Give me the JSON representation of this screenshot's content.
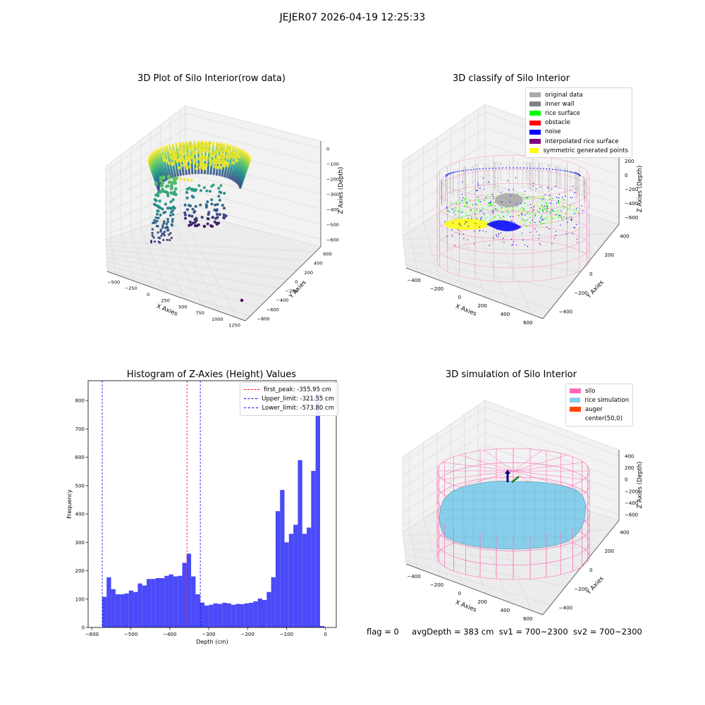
{
  "suptitle": "JEJER07 2026-04-19 12:25:33",
  "colors": {
    "gray": "#aaaaaa",
    "inner_wall": "#808080",
    "rice_surface": "#00ff00",
    "obstacle": "#ff0000",
    "noise": "#0000ff",
    "interp": "#800080",
    "sym": "#ffff00",
    "silo": "#ff69b4",
    "rice_sim": "#87ceeb",
    "auger": "#ff4500",
    "hist_bar": "#4a4af8"
  },
  "plots": {
    "raw": {
      "title": "3D Plot of Silo Interior(row data)",
      "xlabel": "X Axies",
      "ylabel": "Y Axies",
      "zlabel": "Z Axies (Depth)",
      "xticks": [
        "−500",
        "−250",
        "0",
        "250",
        "500",
        "750",
        "1000",
        "1250"
      ],
      "yticks": [
        "−800",
        "−600",
        "−400",
        "−200",
        "0",
        "200",
        "400",
        "600"
      ],
      "zticks": [
        "0",
        "−100",
        "−200",
        "−300",
        "−400",
        "−500",
        "−600"
      ]
    },
    "classify": {
      "title": "3D classify of Silo Interior",
      "xlabel": "X Axies",
      "ylabel": "Y Axies",
      "zlabel": "Z Axies (Depth)",
      "xticks": [
        "−400",
        "−200",
        "0",
        "200",
        "400",
        "600"
      ],
      "yticks": [
        "−400",
        "−200",
        "0",
        "200",
        "400"
      ],
      "zticks": [
        "200",
        "0",
        "−200",
        "−400",
        "−600"
      ],
      "legend": [
        {
          "label": "original data",
          "color": "#aaaaaa"
        },
        {
          "label": "inner wall",
          "color": "#808080"
        },
        {
          "label": "rice surface",
          "color": "#00ff00"
        },
        {
          "label": "obstacle",
          "color": "#ff0000"
        },
        {
          "label": "noise",
          "color": "#0000ff"
        },
        {
          "label": "interpolated rice surface",
          "color": "#800080"
        },
        {
          "label": "symmetric generated points",
          "color": "#ffff00"
        }
      ]
    },
    "simulation": {
      "title": "3D simulation of Silo Interior",
      "xlabel": "X Axies",
      "ylabel": "Y Axies",
      "zlabel": "Z Axies (Depth)",
      "xticks": [
        "−400",
        "−200",
        "0",
        "200",
        "400",
        "600"
      ],
      "yticks": [
        "−400",
        "−200",
        "0",
        "200",
        "400"
      ],
      "zticks": [
        "400",
        "200",
        "0",
        "−200",
        "−400",
        "−600"
      ],
      "legend": [
        {
          "label": "silo",
          "color": "#ff69b4"
        },
        {
          "label": "rice simulation",
          "color": "#87ceeb"
        },
        {
          "label": "auger",
          "color": "#ff4500"
        },
        {
          "label": "center(50,0)",
          "color": ""
        }
      ]
    }
  },
  "chart_data": [
    {
      "type": "bar",
      "title": "Histogram of Z-Axies (Height) Values",
      "xlabel": "Depth (cm)",
      "ylabel": "Frequency",
      "xlim": [
        -610,
        28
      ],
      "ylim": [
        0,
        870
      ],
      "xticks": [
        -600,
        -500,
        -400,
        -300,
        -200,
        -100,
        0
      ],
      "yticks": [
        0,
        100,
        200,
        300,
        400,
        500,
        600,
        700,
        800
      ],
      "bin_start": -573.8,
      "bin_width": 11.43,
      "values": [
        108,
        177,
        135,
        117,
        117,
        120,
        130,
        125,
        155,
        148,
        171,
        171,
        174,
        174,
        182,
        187,
        180,
        182,
        228,
        260,
        180,
        117,
        88,
        77,
        80,
        85,
        83,
        87,
        85,
        80,
        83,
        82,
        85,
        87,
        92,
        102,
        97,
        125,
        177,
        410,
        485,
        300,
        330,
        362,
        590,
        330,
        352,
        552,
        823,
        5
      ],
      "lines": [
        {
          "label": "first_peak: -355.95 cm",
          "x": -355.95,
          "color": "#ff0000"
        },
        {
          "label": "Upper_limit: -321.55 cm",
          "x": -321.55,
          "color": "#0000ff"
        },
        {
          "label": "Lower_limit: -573.80 cm",
          "x": -573.8,
          "color": "#0000ff"
        }
      ],
      "legend_position": "upper right"
    }
  ],
  "footer": {
    "flag": "flag = 0",
    "avg": "avgDepth = 383 cm",
    "sv1": "sv1 = 700~2300",
    "sv2": "sv2 = 700~2300"
  }
}
